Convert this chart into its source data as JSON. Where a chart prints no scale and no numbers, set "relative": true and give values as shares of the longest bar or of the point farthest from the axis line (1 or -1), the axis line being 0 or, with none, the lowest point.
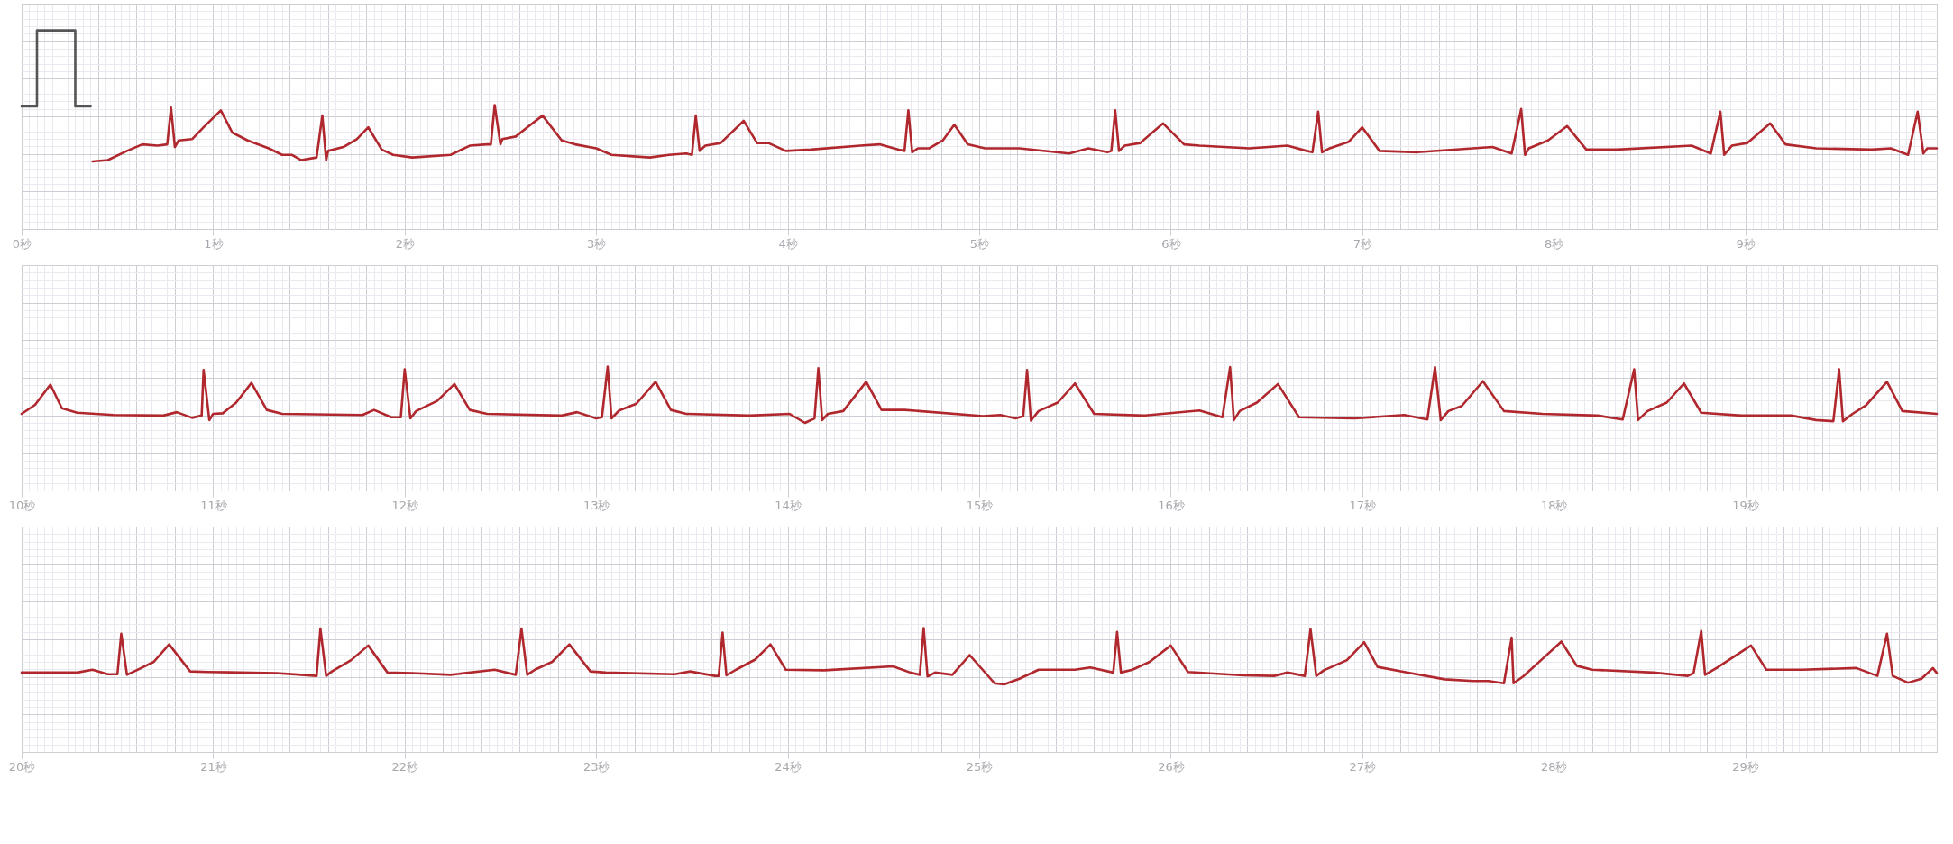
{
  "chart_data": [
    {
      "type": "line",
      "relative": true,
      "grid": true,
      "xlim": [
        0,
        10
      ],
      "xticks": [
        {
          "value": 0,
          "label": "0秒"
        },
        {
          "value": 1,
          "label": "1秒"
        },
        {
          "value": 2,
          "label": "2秒"
        },
        {
          "value": 3,
          "label": "3秒"
        },
        {
          "value": 4,
          "label": "4秒"
        },
        {
          "value": 5,
          "label": "5秒"
        },
        {
          "value": 6,
          "label": "6秒"
        },
        {
          "value": 7,
          "label": "7秒"
        },
        {
          "value": 8,
          "label": "8秒"
        },
        {
          "value": 9,
          "label": "9秒"
        }
      ],
      "series": [
        {
          "color": "#b0282e",
          "x": [
            0.37,
            0.45,
            0.55,
            0.63,
            0.71,
            0.76,
            0.78,
            0.8,
            0.82,
            0.89,
            0.95,
            1.04,
            1.1,
            1.18,
            1.29,
            1.36,
            1.41,
            1.46,
            1.54,
            1.57,
            1.59,
            1.6,
            1.68,
            1.75,
            1.81,
            1.88,
            1.94,
            2.04,
            2.24,
            2.34,
            2.43,
            2.45,
            2.47,
            2.5,
            2.51,
            2.58,
            2.64,
            2.72,
            2.82,
            2.89,
            3.0,
            3.08,
            3.28,
            3.38,
            3.47,
            3.5,
            3.52,
            3.54,
            3.57,
            3.65,
            3.77,
            3.84,
            3.9,
            3.99,
            4.12,
            4.38,
            4.48,
            4.58,
            4.61,
            4.63,
            4.65,
            4.68,
            4.74,
            4.81,
            4.87,
            4.94,
            5.03,
            5.21,
            5.47,
            5.57,
            5.67,
            5.69,
            5.71,
            5.73,
            5.76,
            5.84,
            5.96,
            6.07,
            6.15,
            6.41,
            6.61,
            6.71,
            6.74,
            6.77,
            6.79,
            6.83,
            6.93,
            7.0,
            7.09,
            7.29,
            7.68,
            7.78,
            7.83,
            7.85,
            7.87,
            7.97,
            8.07,
            8.17,
            8.33,
            8.72,
            8.82,
            8.87,
            8.89,
            8.93,
            9.01,
            9.13,
            9.21,
            9.37,
            9.66,
            9.76,
            9.85,
            9.9,
            9.93,
            9.95,
            10.0
          ],
          "values": [
            0,
            0.01,
            0.08,
            0.13,
            0.12,
            0.13,
            0.41,
            0.11,
            0.16,
            0.17,
            0.26,
            0.39,
            0.22,
            0.16,
            0.1,
            0.05,
            0.05,
            0.01,
            0.03,
            0.35,
            0.01,
            0.08,
            0.11,
            0.17,
            0.26,
            0.09,
            0.05,
            0.03,
            0.05,
            0.12,
            0.13,
            0.13,
            0.43,
            0.13,
            0.17,
            0.19,
            0.26,
            0.35,
            0.16,
            0.13,
            0.1,
            0.05,
            0.03,
            0.05,
            0.06,
            0.05,
            0.35,
            0.08,
            0.12,
            0.14,
            0.31,
            0.14,
            0.14,
            0.08,
            0.09,
            0.12,
            0.13,
            0.09,
            0.08,
            0.39,
            0.07,
            0.1,
            0.1,
            0.16,
            0.28,
            0.13,
            0.1,
            0.1,
            0.06,
            0.1,
            0.07,
            0.08,
            0.39,
            0.08,
            0.12,
            0.14,
            0.29,
            0.13,
            0.12,
            0.1,
            0.12,
            0.08,
            0.07,
            0.38,
            0.07,
            0.1,
            0.15,
            0.26,
            0.08,
            0.07,
            0.11,
            0.06,
            0.4,
            0.05,
            0.1,
            0.16,
            0.27,
            0.09,
            0.09,
            0.12,
            0.06,
            0.38,
            0.05,
            0.12,
            0.14,
            0.29,
            0.13,
            0.1,
            0.09,
            0.1,
            0.05,
            0.38,
            0.06,
            0.1,
            0.1
          ]
        },
        {
          "color": "#555555",
          "x": [
            0,
            0.08,
            0.08,
            0.28,
            0.28,
            0.36
          ],
          "values": [
            0.42,
            0.42,
            1,
            1,
            0.42,
            0.42
          ]
        }
      ]
    },
    {
      "type": "line",
      "relative": true,
      "color": "#b0282e",
      "grid": true,
      "xlim": [
        10,
        20
      ],
      "xticks": [
        {
          "value": 10,
          "label": "10秒"
        },
        {
          "value": 11,
          "label": "11秒"
        },
        {
          "value": 12,
          "label": "12秒"
        },
        {
          "value": 13,
          "label": "13秒"
        },
        {
          "value": 14,
          "label": "14秒"
        },
        {
          "value": 15,
          "label": "15秒"
        },
        {
          "value": 16,
          "label": "16秒"
        },
        {
          "value": 17,
          "label": "17秒"
        },
        {
          "value": 18,
          "label": "18秒"
        },
        {
          "value": 19,
          "label": "19秒"
        }
      ],
      "x": [
        10.0,
        10.07,
        10.15,
        10.21,
        10.29,
        10.48,
        10.74,
        10.81,
        10.89,
        10.94,
        10.95,
        10.98,
        11.0,
        11.05,
        11.12,
        11.2,
        11.28,
        11.36,
        11.78,
        11.84,
        11.93,
        11.98,
        12.0,
        12.03,
        12.06,
        12.17,
        12.26,
        12.34,
        12.43,
        12.82,
        12.9,
        13.0,
        13.03,
        13.06,
        13.08,
        13.12,
        13.21,
        13.31,
        13.39,
        13.47,
        13.8,
        14.01,
        14.09,
        14.14,
        14.16,
        14.18,
        14.21,
        14.29,
        14.41,
        14.49,
        14.61,
        15.02,
        15.11,
        15.19,
        15.23,
        15.25,
        15.27,
        15.31,
        15.41,
        15.5,
        15.6,
        15.86,
        16.15,
        16.27,
        16.31,
        16.33,
        16.36,
        16.45,
        16.56,
        16.67,
        16.96,
        17.22,
        17.34,
        17.38,
        17.41,
        17.45,
        17.52,
        17.63,
        17.74,
        17.94,
        18.23,
        18.36,
        18.42,
        18.44,
        18.49,
        18.59,
        18.68,
        18.77,
        18.98,
        19.24,
        19.37,
        19.46,
        19.49,
        19.51,
        19.56,
        19.63,
        19.74,
        19.82,
        20.0
      ],
      "values": [
        0.16,
        0.32,
        0.68,
        0.26,
        0.18,
        0.14,
        0.13,
        0.19,
        0.09,
        0.13,
        0.94,
        0.05,
        0.16,
        0.17,
        0.36,
        0.71,
        0.23,
        0.16,
        0.14,
        0.23,
        0.1,
        0.1,
        0.95,
        0.08,
        0.21,
        0.39,
        0.69,
        0.23,
        0.16,
        0.13,
        0.19,
        0.08,
        0.1,
        1.0,
        0.08,
        0.22,
        0.34,
        0.73,
        0.23,
        0.16,
        0.13,
        0.16,
        0,
        0.08,
        0.97,
        0.05,
        0.16,
        0.21,
        0.73,
        0.23,
        0.23,
        0.12,
        0.14,
        0.08,
        0.12,
        0.94,
        0.04,
        0.21,
        0.36,
        0.7,
        0.16,
        0.13,
        0.22,
        0.1,
        0.99,
        0.05,
        0.21,
        0.36,
        0.69,
        0.1,
        0.08,
        0.14,
        0.06,
        0.99,
        0.05,
        0.21,
        0.3,
        0.74,
        0.21,
        0.16,
        0.13,
        0.06,
        0.95,
        0.05,
        0.21,
        0.36,
        0.7,
        0.18,
        0.13,
        0.13,
        0.05,
        0.03,
        0.95,
        0.03,
        0.16,
        0.31,
        0.73,
        0.21,
        0.16
      ]
    },
    {
      "type": "line",
      "relative": true,
      "color": "#b0282e",
      "grid": true,
      "xlim": [
        20,
        30
      ],
      "xticks": [
        {
          "value": 20,
          "label": "20秒"
        },
        {
          "value": 21,
          "label": "21秒"
        },
        {
          "value": 22,
          "label": "22秒"
        },
        {
          "value": 23,
          "label": "23秒"
        },
        {
          "value": 24,
          "label": "24秒"
        },
        {
          "value": 25,
          "label": "25秒"
        },
        {
          "value": 26,
          "label": "26秒"
        },
        {
          "value": 27,
          "label": "27秒"
        },
        {
          "value": 28,
          "label": "28秒"
        },
        {
          "value": 29,
          "label": "29秒"
        }
      ],
      "x": [
        20.0,
        20.29,
        20.37,
        20.45,
        20.5,
        20.52,
        20.55,
        20.6,
        20.69,
        20.77,
        20.88,
        20.97,
        21.33,
        21.46,
        21.54,
        21.56,
        21.59,
        21.62,
        21.72,
        21.81,
        21.91,
        22.04,
        22.24,
        22.47,
        22.58,
        22.61,
        22.64,
        22.68,
        22.77,
        22.86,
        22.97,
        23.05,
        23.41,
        23.49,
        23.62,
        23.64,
        23.66,
        23.68,
        23.73,
        23.83,
        23.91,
        23.99,
        24.19,
        24.55,
        24.64,
        24.69,
        24.71,
        24.73,
        24.77,
        24.86,
        24.95,
        25.08,
        25.13,
        25.21,
        25.31,
        25.5,
        25.58,
        25.7,
        25.72,
        25.74,
        25.8,
        25.89,
        26.0,
        26.09,
        26.38,
        26.54,
        26.61,
        26.7,
        26.73,
        26.76,
        26.8,
        26.92,
        27.01,
        27.08,
        27.22,
        27.43,
        27.58,
        27.66,
        27.74,
        27.78,
        27.79,
        27.84,
        27.94,
        28.04,
        28.12,
        28.2,
        28.52,
        28.7,
        28.73,
        28.77,
        28.79,
        28.85,
        29.03,
        29.11,
        29.3,
        29.58,
        29.69,
        29.74,
        29.77,
        29.85,
        29.92,
        29.98,
        30.0
      ],
      "values": [
        0.21,
        0.21,
        0.26,
        0.18,
        0.18,
        0.9,
        0.17,
        0.25,
        0.4,
        0.71,
        0.23,
        0.22,
        0.2,
        0.17,
        0.15,
        0.99,
        0.15,
        0.23,
        0.43,
        0.69,
        0.21,
        0.2,
        0.17,
        0.26,
        0.17,
        0.99,
        0.17,
        0.26,
        0.4,
        0.71,
        0.23,
        0.21,
        0.18,
        0.23,
        0.15,
        0.15,
        0.92,
        0.16,
        0.26,
        0.44,
        0.71,
        0.26,
        0.25,
        0.32,
        0.21,
        0.17,
        1.0,
        0.14,
        0.21,
        0.17,
        0.52,
        0.02,
        0,
        0.1,
        0.26,
        0.26,
        0.3,
        0.21,
        0.93,
        0.21,
        0.26,
        0.4,
        0.69,
        0.22,
        0.16,
        0.15,
        0.21,
        0.15,
        0.98,
        0.15,
        0.25,
        0.43,
        0.75,
        0.31,
        0.22,
        0.09,
        0.06,
        0.06,
        0.02,
        0.83,
        0.02,
        0.14,
        0.45,
        0.76,
        0.33,
        0.26,
        0.21,
        0.15,
        0.2,
        0.95,
        0.17,
        0.29,
        0.69,
        0.26,
        0.26,
        0.29,
        0.15,
        0.9,
        0.15,
        0.03,
        0.1,
        0.29,
        0.2
      ]
    }
  ]
}
